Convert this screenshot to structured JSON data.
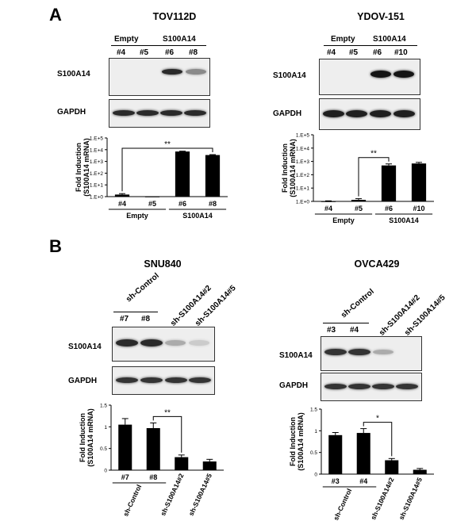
{
  "panelA": {
    "letter": "A",
    "tov": {
      "title": "TOV112D",
      "groups": [
        "Empty",
        "S100A14"
      ],
      "lanes": [
        "#4",
        "#5",
        "#6",
        "#8"
      ],
      "blot_labels": [
        "S100A14",
        "GAPDH"
      ],
      "s100a14_band_intensity": [
        0.0,
        0.0,
        0.9,
        0.45
      ],
      "gapdh_band_intensity": [
        0.9,
        0.9,
        0.9,
        0.9
      ]
    },
    "ydov": {
      "title": "YDOV-151",
      "groups": [
        "Empty",
        "S100A14"
      ],
      "lanes": [
        "#4",
        "#5",
        "#6",
        "#10"
      ],
      "blot_labels": [
        "S100A14",
        "GAPDH"
      ],
      "s100a14_band_intensity": [
        0.0,
        0.0,
        1.0,
        1.0
      ],
      "gapdh_band_intensity": [
        0.95,
        0.95,
        0.95,
        0.95
      ]
    }
  },
  "panelB": {
    "letter": "B",
    "snu": {
      "title": "SNU840",
      "groups": [
        "sh-Control"
      ],
      "lanes": [
        "#7",
        "#8"
      ],
      "rotated_lanes": [
        "sh-S100A14#2",
        "sh-S100A14#5"
      ],
      "blot_labels": [
        "S100A14",
        "GAPDH"
      ],
      "s100a14_band_intensity": [
        0.9,
        0.9,
        0.3,
        0.15
      ],
      "gapdh_band_intensity": [
        0.85,
        0.85,
        0.85,
        0.85
      ]
    },
    "ovca": {
      "title": "OVCA429",
      "groups": [
        "sh-Control"
      ],
      "lanes": [
        "#3",
        "#4"
      ],
      "rotated_lanes": [
        "sh-S100A14#2",
        "sh-S100A14#5"
      ],
      "blot_labels": [
        "S100A14",
        "GAPDH"
      ],
      "s100a14_band_intensity": [
        0.85,
        0.85,
        0.3,
        0.0
      ],
      "gapdh_band_intensity": [
        0.85,
        0.85,
        0.85,
        0.85
      ]
    }
  },
  "chart_data": [
    {
      "type": "bar",
      "ylabel": "Fold Induction (S100A14 mRNA)",
      "yscale": "log",
      "ylim": [
        1,
        100000
      ],
      "yticks": [
        "1.E+0",
        "1.E+1",
        "1.E+2",
        "1.E+3",
        "1.E+4",
        "1.E+5"
      ],
      "categories": [
        "#4",
        "#5",
        "#6",
        "#8"
      ],
      "groups": [
        {
          "name": "Empty",
          "members": [
            "#4",
            "#5"
          ]
        },
        {
          "name": "S100A14",
          "members": [
            "#6",
            "#8"
          ]
        }
      ],
      "values": [
        1.5,
        1.0,
        7000,
        3500
      ],
      "errors": [
        0.3,
        0,
        500,
        300
      ],
      "significance": [
        {
          "from": "#4",
          "to": "#8",
          "label": "**"
        }
      ]
    },
    {
      "type": "bar",
      "ylabel": "Fold Induction (S100A14 mRNA)",
      "yscale": "log",
      "ylim": [
        1,
        100000
      ],
      "yticks": [
        "1.E+0",
        "1.E+1",
        "1.E+2",
        "1.E+3",
        "1.E+4",
        "1.E+5"
      ],
      "categories": [
        "#4",
        "#5",
        "#6",
        "#10"
      ],
      "groups": [
        {
          "name": "Empty",
          "members": [
            "#4",
            "#5"
          ]
        },
        {
          "name": "S100A14",
          "members": [
            "#6",
            "#10"
          ]
        }
      ],
      "values": [
        1.0,
        1.3,
        500,
        700
      ],
      "errors": [
        0.1,
        0.3,
        150,
        150
      ],
      "significance": [
        {
          "from": "#5",
          "to": "#6",
          "label": "**"
        }
      ]
    },
    {
      "type": "bar",
      "ylabel": "Fold Induction (S100A14 mRNA)",
      "ylim": [
        0,
        1.5
      ],
      "yticks": [
        "0",
        "0.5",
        "1",
        "1.5"
      ],
      "categories": [
        "#7",
        "#8",
        "sh-S100A14#2",
        "sh-S100A14#5"
      ],
      "group_labels": [
        "sh-Control"
      ],
      "values": [
        1.05,
        0.97,
        0.3,
        0.2
      ],
      "errors": [
        0.14,
        0.12,
        0.05,
        0.05
      ],
      "significance": [
        {
          "from": "#8",
          "to": "sh-S100A14#2",
          "label": "**"
        }
      ]
    },
    {
      "type": "bar",
      "ylabel": "Fold Induction (S100A14 mRNA)",
      "ylim": [
        0,
        1.5
      ],
      "yticks": [
        "0",
        "0.5",
        "1",
        "1.5"
      ],
      "categories": [
        "#3",
        "#4",
        "sh-S100A14#2",
        "sh-S100A14#5"
      ],
      "group_labels": [
        "sh-Control"
      ],
      "values": [
        0.9,
        0.95,
        0.32,
        0.1
      ],
      "errors": [
        0.06,
        0.1,
        0.04,
        0.03
      ],
      "significance": [
        {
          "from": "#4",
          "to": "sh-S100A14#2",
          "label": "*"
        }
      ]
    }
  ]
}
